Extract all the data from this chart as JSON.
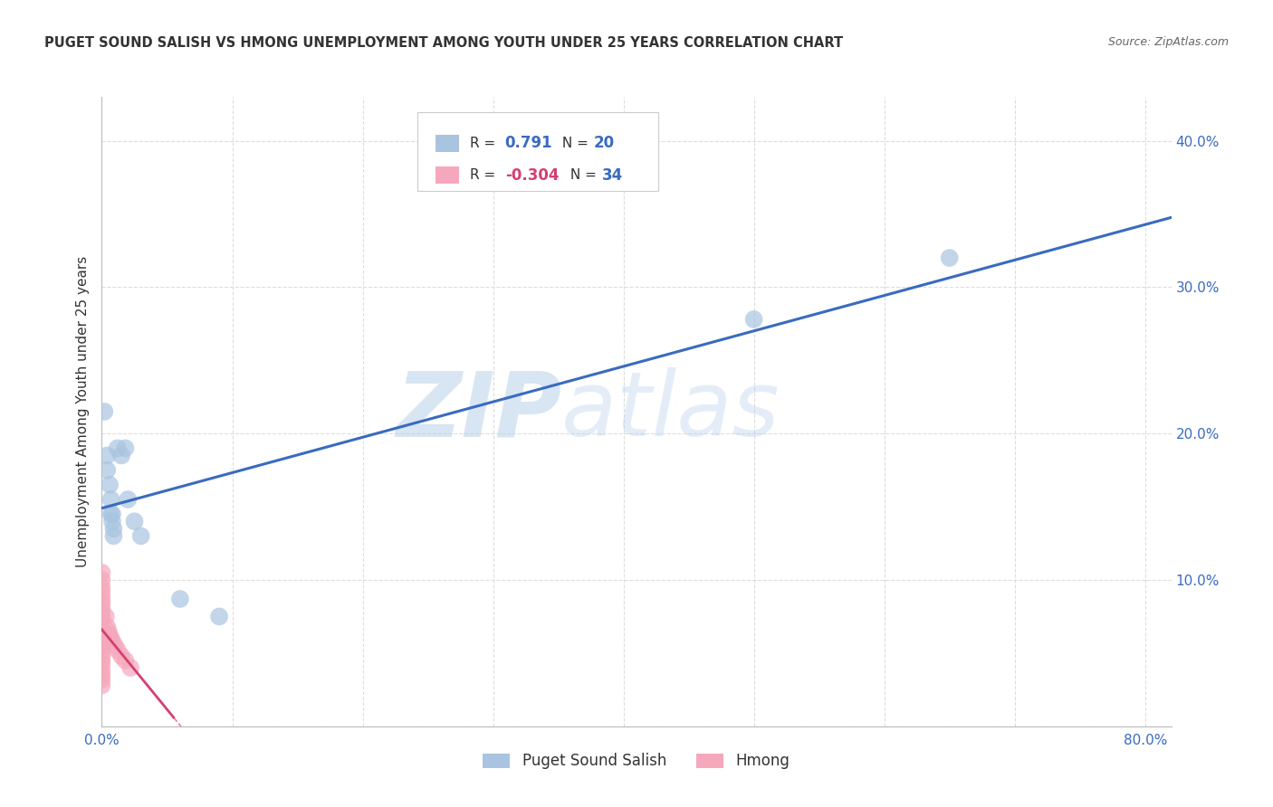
{
  "title": "PUGET SOUND SALISH VS HMONG UNEMPLOYMENT AMONG YOUTH UNDER 25 YEARS CORRELATION CHART",
  "source": "Source: ZipAtlas.com",
  "ylabel": "Unemployment Among Youth under 25 years",
  "xlim": [
    0.0,
    0.82
  ],
  "ylim": [
    0.0,
    0.43
  ],
  "xticks": [
    0.0,
    0.1,
    0.2,
    0.3,
    0.4,
    0.5,
    0.6,
    0.7,
    0.8
  ],
  "yticks": [
    0.0,
    0.1,
    0.2,
    0.3,
    0.4
  ],
  "ytick_labels": [
    "",
    "10.0%",
    "20.0%",
    "30.0%",
    "40.0%"
  ],
  "xtick_labels": [
    "0.0%",
    "",
    "",
    "",
    "",
    "",
    "",
    "",
    "80.0%"
  ],
  "background_color": "#ffffff",
  "grid_color": "#dddddd",
  "watermark_zip": "ZIP",
  "watermark_atlas": "atlas",
  "blue_R": 0.791,
  "blue_N": 20,
  "pink_R": -0.304,
  "pink_N": 34,
  "blue_color": "#a8c4e0",
  "pink_color": "#f5a8bc",
  "blue_line_color": "#3a6bbf",
  "pink_line_color": "#d44070",
  "blue_scatter": [
    [
      0.002,
      0.215
    ],
    [
      0.004,
      0.185
    ],
    [
      0.004,
      0.175
    ],
    [
      0.006,
      0.165
    ],
    [
      0.007,
      0.155
    ],
    [
      0.007,
      0.145
    ],
    [
      0.008,
      0.145
    ],
    [
      0.008,
      0.14
    ],
    [
      0.009,
      0.135
    ],
    [
      0.009,
      0.13
    ],
    [
      0.012,
      0.19
    ],
    [
      0.015,
      0.185
    ],
    [
      0.018,
      0.19
    ],
    [
      0.02,
      0.155
    ],
    [
      0.025,
      0.14
    ],
    [
      0.03,
      0.13
    ],
    [
      0.06,
      0.087
    ],
    [
      0.09,
      0.075
    ],
    [
      0.5,
      0.278
    ],
    [
      0.65,
      0.32
    ]
  ],
  "pink_scatter": [
    [
      0.0,
      0.105
    ],
    [
      0.0,
      0.1
    ],
    [
      0.0,
      0.095
    ],
    [
      0.0,
      0.092
    ],
    [
      0.0,
      0.088
    ],
    [
      0.0,
      0.085
    ],
    [
      0.0,
      0.082
    ],
    [
      0.0,
      0.078
    ],
    [
      0.0,
      0.075
    ],
    [
      0.0,
      0.072
    ],
    [
      0.0,
      0.068
    ],
    [
      0.0,
      0.065
    ],
    [
      0.0,
      0.062
    ],
    [
      0.0,
      0.058
    ],
    [
      0.0,
      0.055
    ],
    [
      0.0,
      0.052
    ],
    [
      0.0,
      0.048
    ],
    [
      0.0,
      0.045
    ],
    [
      0.0,
      0.042
    ],
    [
      0.0,
      0.038
    ],
    [
      0.0,
      0.035
    ],
    [
      0.0,
      0.032
    ],
    [
      0.0,
      0.028
    ],
    [
      0.003,
      0.075
    ],
    [
      0.004,
      0.068
    ],
    [
      0.005,
      0.065
    ],
    [
      0.006,
      0.062
    ],
    [
      0.007,
      0.06
    ],
    [
      0.008,
      0.058
    ],
    [
      0.01,
      0.055
    ],
    [
      0.012,
      0.052
    ],
    [
      0.015,
      0.048
    ],
    [
      0.018,
      0.045
    ],
    [
      0.022,
      0.04
    ]
  ],
  "legend_labels": [
    "Puget Sound Salish",
    "Hmong"
  ],
  "figsize": [
    14.06,
    8.92
  ],
  "dpi": 100
}
